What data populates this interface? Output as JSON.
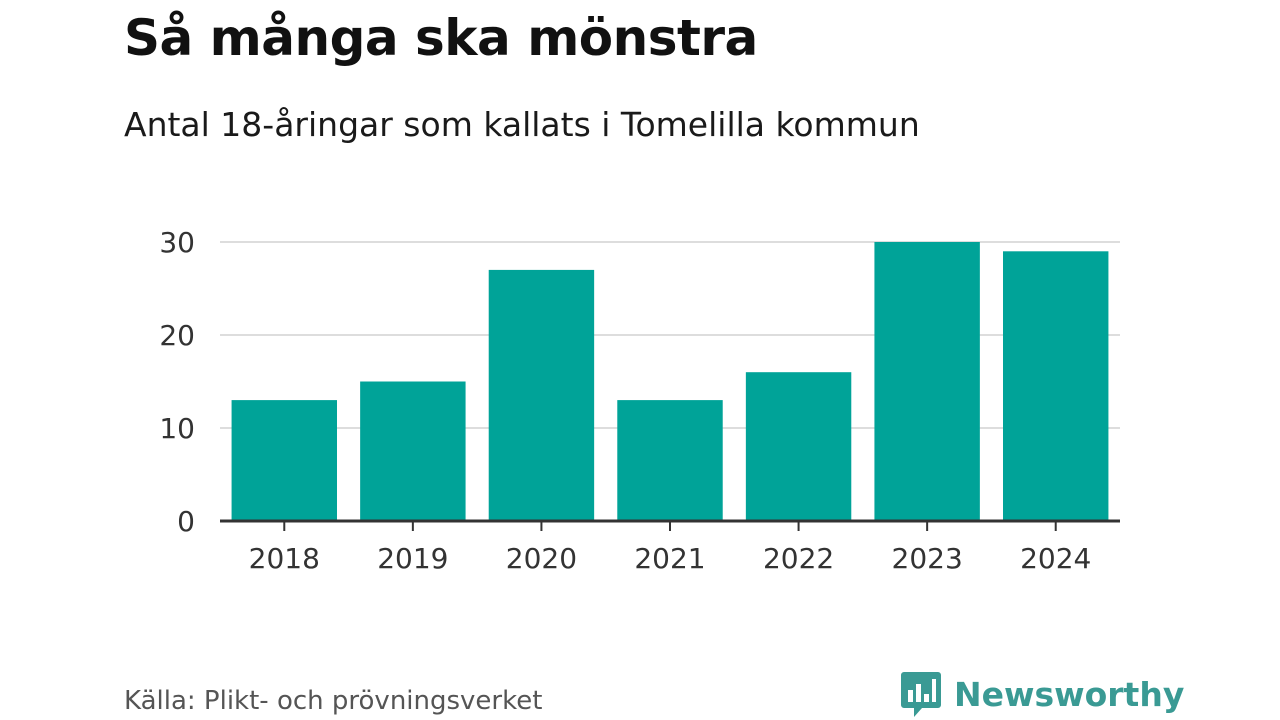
{
  "header": {
    "title": "Så många ska mönstra",
    "subtitle": "Antal 18-åringar som kallats i Tomelilla kommun"
  },
  "footer": {
    "source": "Källa: Plikt- och prövningsverket",
    "brand": "Newsworthy",
    "brand_icon": "bar-chart-logo-icon"
  },
  "colors": {
    "bar": "#00a398",
    "grid": "#dddddd",
    "axis": "#333333",
    "brand": "#3a9a94"
  },
  "chart_data": {
    "type": "bar",
    "categories": [
      "2018",
      "2019",
      "2020",
      "2021",
      "2022",
      "2023",
      "2024"
    ],
    "values": [
      13,
      15,
      27,
      13,
      16,
      30,
      29
    ],
    "title": "Så många ska mönstra",
    "subtitle": "Antal 18-åringar som kallats i Tomelilla kommun",
    "xlabel": "",
    "ylabel": "",
    "ylim": [
      0,
      30
    ],
    "yticks": [
      0,
      10,
      20,
      30
    ],
    "grid": true,
    "legend": "none"
  }
}
